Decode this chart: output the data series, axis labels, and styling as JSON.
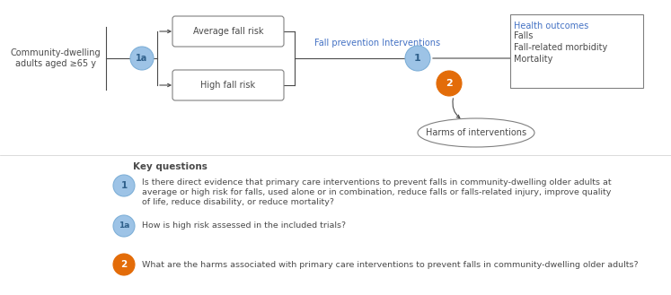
{
  "bg_color": "#ffffff",
  "text_color_dark": "#4a4a4a",
  "text_color_blue": "#4472c4",
  "circle_blue_fill": "#9dc3e6",
  "circle_blue_edge": "#7fb0d8",
  "circle_orange_fill": "#e36c09",
  "circle_orange_edge": "#e36c09",
  "box_fill": "#ffffff",
  "box_edge": "#808080",
  "line_color": "#4a4a4a",
  "community_text": "Community-dwelling\nadults aged ≥65 y",
  "avg_risk_text": "Average fall risk",
  "high_risk_text": "High fall risk",
  "intervention_label": "Fall prevention Interventions",
  "health_outcomes_title": "Health outcomes",
  "health_outcomes_items": [
    "Falls",
    "Fall-related morbidity",
    "Mortality"
  ],
  "harms_text": "Harms of interventions",
  "key_questions_title": "Key questions",
  "kq1_label": "1",
  "kq1a_label": "1a",
  "kq2_label": "2",
  "kq1_text_lines": [
    "Is there direct evidence that primary care interventions to prevent falls in community-dwelling older adults at",
    "average or high risk for falls, used alone or in combination, reduce falls or falls-related injury, improve quality",
    "of life, reduce disability, or reduce mortality?"
  ],
  "kq1a_text": "How is high risk assessed in the included trials?",
  "kq2_text": "What are the harms associated with primary care interventions to prevent falls in community-dwelling older adults?"
}
